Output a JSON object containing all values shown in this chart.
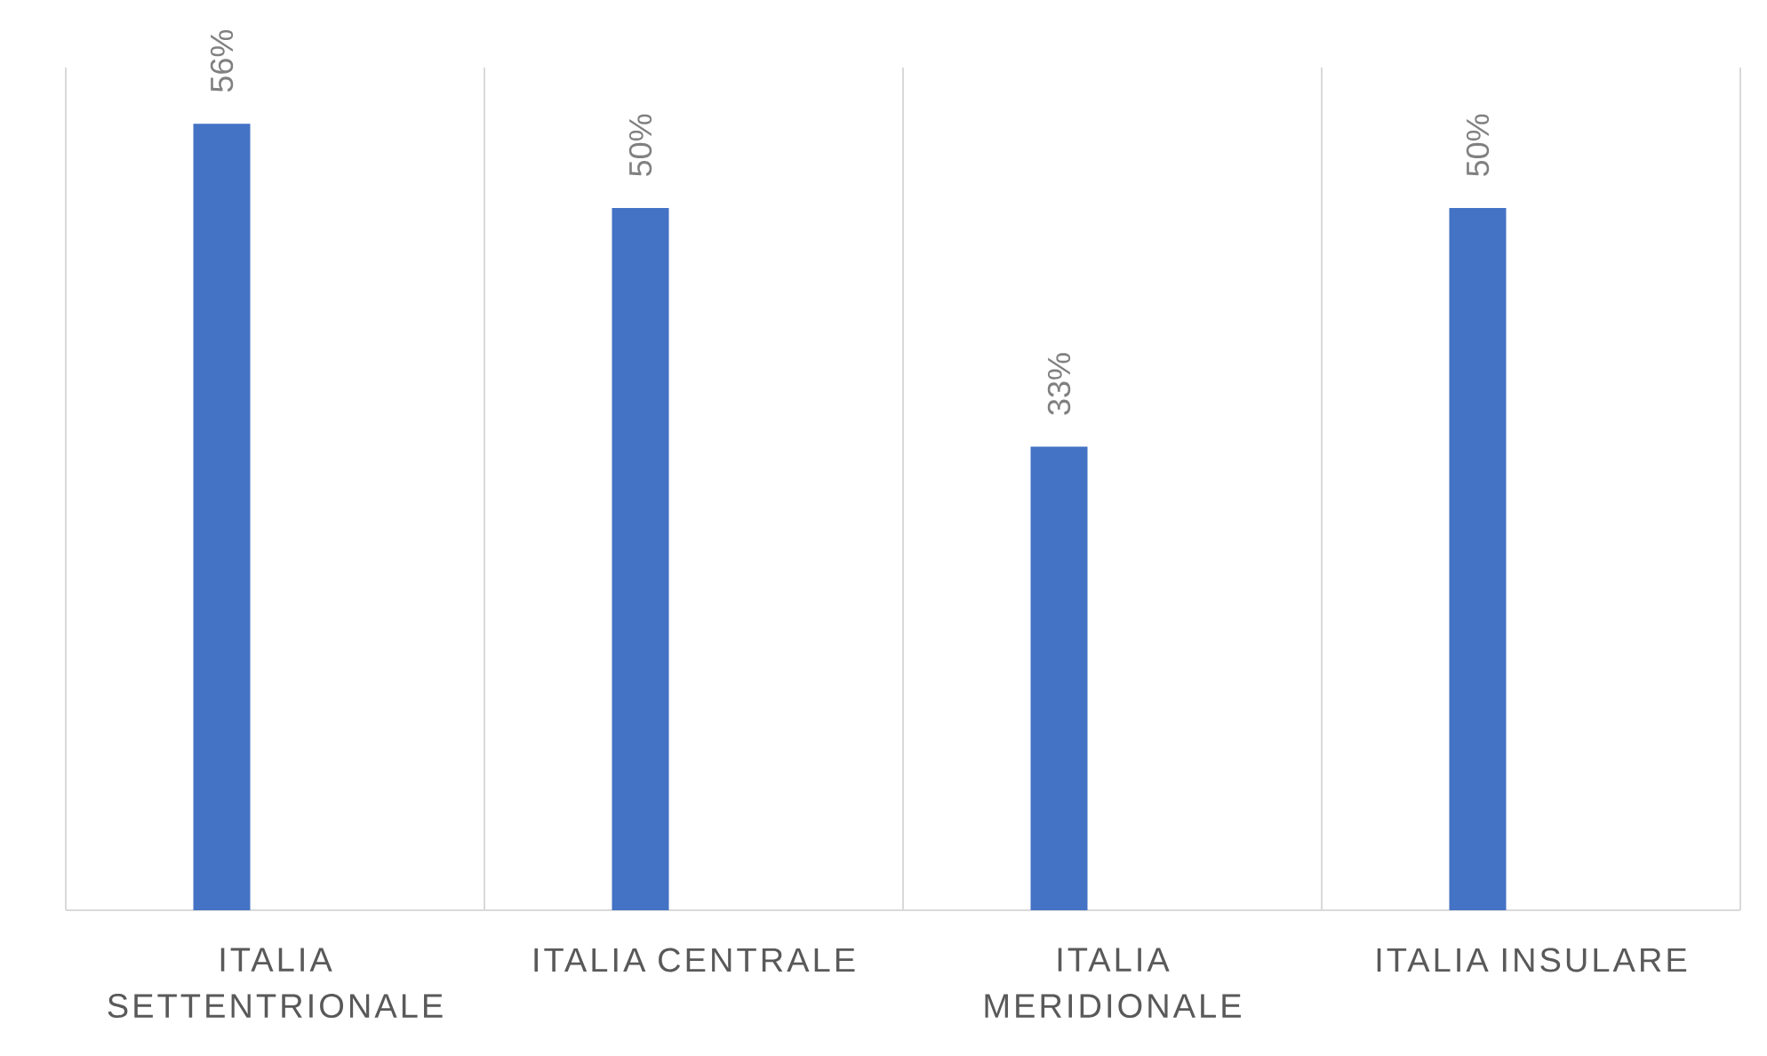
{
  "chart_data": {
    "type": "bar",
    "categories": [
      "ITALIA SETTENTRIONALE",
      "ITALIA CENTRALE",
      "ITALIA MERIDIONALE",
      "ITALIA INSULARE"
    ],
    "values": [
      56,
      50,
      33,
      50
    ],
    "color": "#4472c4",
    "value_labels": [
      "56%",
      "50%",
      "33%",
      "50%"
    ],
    "ylim": [
      0,
      60
    ],
    "grid": "x"
  }
}
